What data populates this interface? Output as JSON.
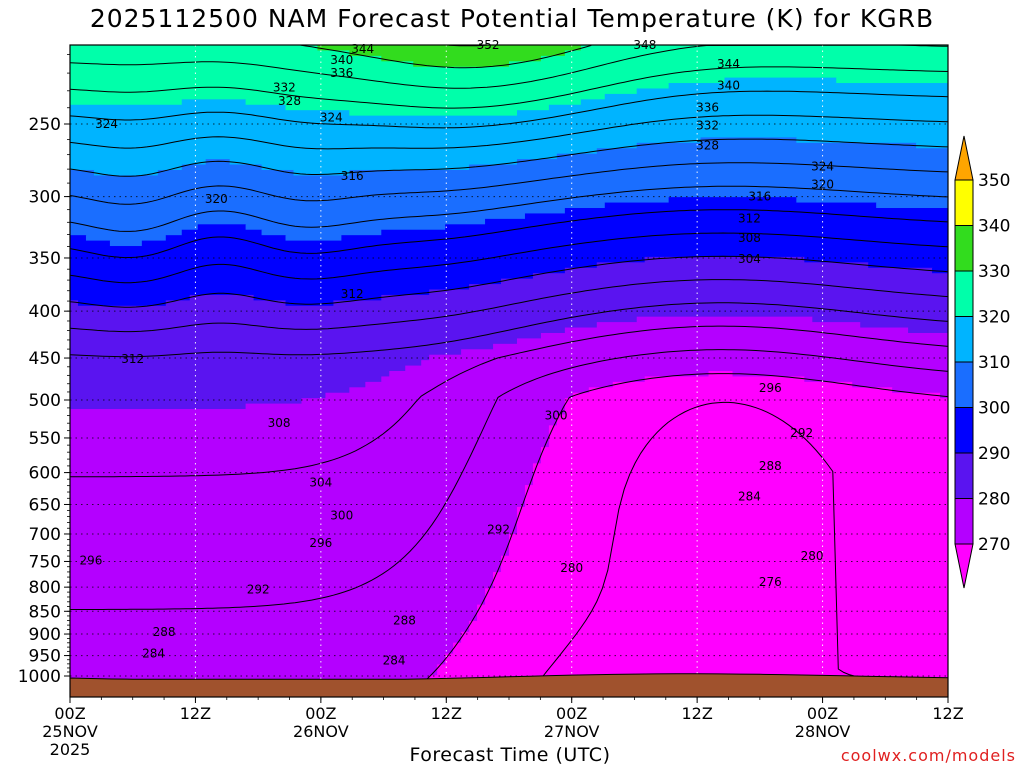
{
  "title": "2025112500 NAM Forecast Potential Temperature (K) for KGRB",
  "xlabel": "Forecast Time (UTC)",
  "credit": "coolwx.com/models",
  "colors": {
    "ground": "#a0522d",
    "bands": {
      "270": "#ff00ff",
      "280": "#b400ff",
      "290": "#5a14f0",
      "300": "#0000ff",
      "310": "#1a6eff",
      "320": "#00b4ff",
      "330": "#00ffaa",
      "340": "#32dc1e",
      "350": "#ffff00",
      "360": "#ffa500"
    }
  },
  "chart_data": {
    "type": "contour",
    "title": "2025112500 NAM Forecast Potential Temperature (K) for KGRB",
    "xlabel": "Forecast Time (UTC)",
    "ylabel": "",
    "y_scale": "log",
    "y_inverted": true,
    "y_ticks": [
      250,
      300,
      350,
      400,
      450,
      500,
      550,
      600,
      650,
      700,
      750,
      800,
      850,
      900,
      950,
      1000
    ],
    "x_ticks": [
      {
        "hour": 0,
        "label": "00Z",
        "sub": "25NOV",
        "sub2": "2025"
      },
      {
        "hour": 12,
        "label": "12Z",
        "sub": "",
        "sub2": ""
      },
      {
        "hour": 24,
        "label": "00Z",
        "sub": "26NOV",
        "sub2": ""
      },
      {
        "hour": 36,
        "label": "12Z",
        "sub": "",
        "sub2": ""
      },
      {
        "hour": 48,
        "label": "00Z",
        "sub": "27NOV",
        "sub2": ""
      },
      {
        "hour": 60,
        "label": "12Z",
        "sub": "",
        "sub2": ""
      },
      {
        "hour": 72,
        "label": "00Z",
        "sub": "28NOV",
        "sub2": ""
      },
      {
        "hour": 84,
        "label": "12Z",
        "sub": "",
        "sub2": ""
      }
    ],
    "xlim": [
      0,
      84
    ],
    "colorbar_labels": [
      350,
      340,
      330,
      320,
      310,
      300,
      290,
      280,
      270
    ],
    "contour_interval": 4,
    "contour_labels": [
      {
        "v": 344,
        "hour": 28,
        "p": 207
      },
      {
        "v": 340,
        "hour": 26,
        "p": 213
      },
      {
        "v": 336,
        "hour": 26,
        "p": 220
      },
      {
        "v": 332,
        "hour": 20.5,
        "p": 228
      },
      {
        "v": 328,
        "hour": 21,
        "p": 236
      },
      {
        "v": 324,
        "hour": 3.5,
        "p": 250
      },
      {
        "v": 324,
        "hour": 25,
        "p": 246
      },
      {
        "v": 320,
        "hour": 14,
        "p": 302
      },
      {
        "v": 316,
        "hour": 27,
        "p": 285
      },
      {
        "v": 312,
        "hour": 27,
        "p": 383
      },
      {
        "v": 312,
        "hour": 6,
        "p": 451
      },
      {
        "v": 308,
        "hour": 20,
        "p": 530
      },
      {
        "v": 304,
        "hour": 24,
        "p": 615
      },
      {
        "v": 300,
        "hour": 26,
        "p": 668
      },
      {
        "v": 296,
        "hour": 24,
        "p": 716
      },
      {
        "v": 296,
        "hour": 2,
        "p": 748
      },
      {
        "v": 292,
        "hour": 18,
        "p": 805
      },
      {
        "v": 288,
        "hour": 9,
        "p": 895
      },
      {
        "v": 288,
        "hour": 32,
        "p": 870
      },
      {
        "v": 284,
        "hour": 8,
        "p": 945
      },
      {
        "v": 284,
        "hour": 31,
        "p": 962
      },
      {
        "v": 280,
        "hour": 48,
        "p": 762
      },
      {
        "v": 300,
        "hour": 46.5,
        "p": 520
      },
      {
        "v": 292,
        "hour": 41,
        "p": 692
      },
      {
        "v": 352,
        "hour": 40,
        "p": 205
      },
      {
        "v": 348,
        "hour": 55,
        "p": 205
      },
      {
        "v": 344,
        "hour": 63,
        "p": 215
      },
      {
        "v": 340,
        "hour": 63,
        "p": 227
      },
      {
        "v": 336,
        "hour": 61,
        "p": 240
      },
      {
        "v": 332,
        "hour": 61,
        "p": 251
      },
      {
        "v": 328,
        "hour": 61,
        "p": 264
      },
      {
        "v": 324,
        "hour": 72,
        "p": 278
      },
      {
        "v": 320,
        "hour": 72,
        "p": 291
      },
      {
        "v": 316,
        "hour": 66,
        "p": 300
      },
      {
        "v": 312,
        "hour": 65,
        "p": 317
      },
      {
        "v": 308,
        "hour": 65,
        "p": 333
      },
      {
        "v": 304,
        "hour": 65,
        "p": 351
      },
      {
        "v": 296,
        "hour": 67,
        "p": 485
      },
      {
        "v": 292,
        "hour": 70,
        "p": 543
      },
      {
        "v": 288,
        "hour": 67,
        "p": 590
      },
      {
        "v": 284,
        "hour": 65,
        "p": 637
      },
      {
        "v": 280,
        "hour": 71,
        "p": 740
      },
      {
        "v": 276,
        "hour": 67,
        "p": 790
      }
    ]
  }
}
